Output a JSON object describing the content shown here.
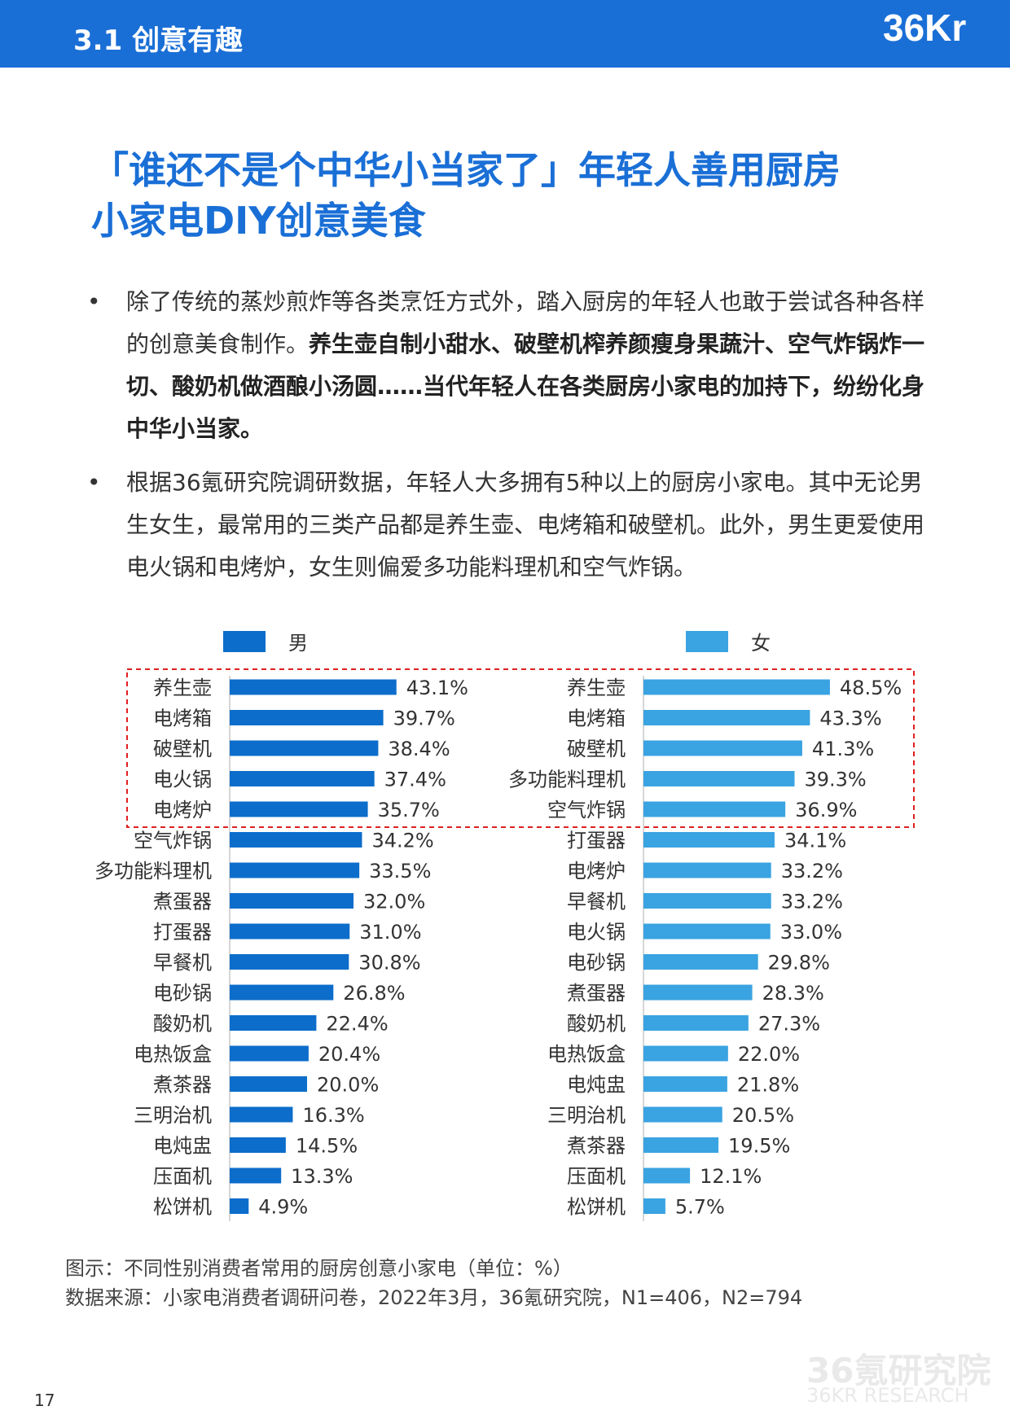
{
  "header": {
    "section_label": "3.1 创意有趣",
    "logo_text": "36Kr",
    "band_color": "#1a6fd6"
  },
  "title": {
    "line1": "「谁还不是个中华小当家了」年轻人善用厨房",
    "line2": "小家电DIY创意美食"
  },
  "bullets": {
    "symbol": "•",
    "p1_text_1": "除了传统的蒸炒煎炸等各类烹饪方式外，踏入厨房的年轻人也敢于尝试各种各样的创意美食制作。",
    "p1_bold": "养生壶自制小甜水、破壁机榨养颜瘦身果蔬汁、空气炸锅炸一切、酸奶机做酒酿小汤圆……当代年轻人在各类厨房小家电的加持下，纷纷化身中华小当家。",
    "p2_text": "根据36氪研究院调研数据，年轻人大多拥有5种以上的厨房小家电。其中无论男生女生，最常用的三类产品都是养生壶、电烤箱和破壁机。此外，男生更爱使用电火锅和电烤炉，女生则偏爱多功能料理机和空气炸锅。"
  },
  "chart_data": [
    {
      "type": "bar",
      "orientation": "horizontal",
      "unit": "%",
      "legend": "男",
      "color": "#0c6dcb",
      "highlight_top": 5,
      "xlim": [
        0,
        50
      ],
      "categories": [
        "养生壶",
        "电烤箱",
        "破壁机",
        "电火锅",
        "电烤炉",
        "空气炸锅",
        "多功能料理机",
        "煮蛋器",
        "打蛋器",
        "早餐机",
        "电砂锅",
        "酸奶机",
        "电热饭盒",
        "煮茶器",
        "三明治机",
        "电炖盅",
        "压面机",
        "松饼机"
      ],
      "values": [
        43.1,
        39.7,
        38.4,
        37.4,
        35.7,
        34.2,
        33.5,
        32.0,
        31.0,
        30.8,
        26.8,
        22.4,
        20.4,
        20.0,
        16.3,
        14.5,
        13.3,
        4.9
      ],
      "value_labels": [
        "43.1%",
        "39.7%",
        "38.4%",
        "37.4%",
        "35.7%",
        "34.2%",
        "33.5%",
        "32.0%",
        "31.0%",
        "30.8%",
        "26.8%",
        "22.4%",
        "20.4%",
        "20.0%",
        "16.3%",
        "14.5%",
        "13.3%",
        "4.9%"
      ]
    },
    {
      "type": "bar",
      "orientation": "horizontal",
      "unit": "%",
      "legend": "女",
      "color": "#3aa3e1",
      "highlight_top": 5,
      "xlim": [
        0,
        50
      ],
      "categories": [
        "养生壶",
        "电烤箱",
        "破壁机",
        "多功能料理机",
        "空气炸锅",
        "打蛋器",
        "电烤炉",
        "早餐机",
        "电火锅",
        "电砂锅",
        "煮蛋器",
        "酸奶机",
        "电热饭盒",
        "电炖盅",
        "三明治机",
        "煮茶器",
        "压面机",
        "松饼机"
      ],
      "values": [
        48.5,
        43.3,
        41.3,
        39.3,
        36.9,
        34.1,
        33.2,
        33.2,
        33.0,
        29.8,
        28.3,
        27.3,
        22.0,
        21.8,
        20.5,
        19.5,
        12.1,
        5.7
      ],
      "value_labels": [
        "48.5%",
        "43.3%",
        "41.3%",
        "39.3%",
        "36.9%",
        "34.1%",
        "33.2%",
        "33.2%",
        "33.0%",
        "29.8%",
        "28.3%",
        "27.3%",
        "22.0%",
        "21.8%",
        "20.5%",
        "19.5%",
        "12.1%",
        "5.7%"
      ]
    }
  ],
  "highlight_border_color": "#e02020",
  "caption": {
    "figure": "图示：不同性别消费者常用的厨房创意小家电（单位：%）",
    "source": "数据来源：小家电消费者调研问卷，2022年3月，36氪研究院，N1=406，N2=794"
  },
  "watermark": {
    "cn": "36氪研究院",
    "en": "36KR RESEARCH"
  },
  "page_number": "17"
}
